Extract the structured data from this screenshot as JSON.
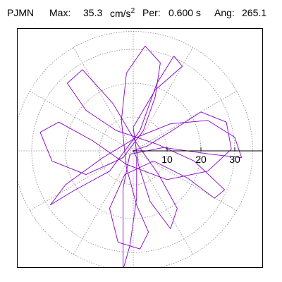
{
  "header": {
    "station": "PJMN",
    "max_label": "Max:",
    "max_value": "35.3",
    "max_unit_base": "cm/s",
    "max_unit_exp": "2",
    "per_label": "Per:",
    "per_value": "0.600 s",
    "ang_label": "Ang:",
    "ang_value": "265.1"
  },
  "chart_data": {
    "type": "scatter",
    "title": "",
    "xlabel": "",
    "ylabel": "",
    "r_ticks": [
      10,
      20,
      30
    ],
    "r_max": 35.3,
    "peak_angle_deg": 265.1,
    "grid": "polar dotted",
    "colors": {
      "trace": "#8800cc",
      "peak_marker": "#009977",
      "grid": "#888888"
    },
    "series": [
      {
        "values": [
          {
            "x": 0,
            "y": 0
          },
          {
            "x": 4.2,
            "y": 1.5
          },
          {
            "x": 11.5,
            "y": 6.0
          },
          {
            "x": 20.0,
            "y": 11.5
          },
          {
            "x": 27.5,
            "y": 8.5
          },
          {
            "x": 29.0,
            "y": 0.5
          },
          {
            "x": 22.0,
            "y": -6.0
          },
          {
            "x": 10.0,
            "y": -8.5
          },
          {
            "x": -2.0,
            "y": -4.0
          },
          {
            "x": -12.0,
            "y": 3.0
          },
          {
            "x": -22.0,
            "y": 8.5
          },
          {
            "x": -27.5,
            "y": 5.5
          },
          {
            "x": -24.0,
            "y": -3.0
          },
          {
            "x": -14.0,
            "y": -7.0
          },
          {
            "x": -3.0,
            "y": -2.0
          },
          {
            "x": 3.0,
            "y": 6.0
          },
          {
            "x": 6.5,
            "y": 16.0
          },
          {
            "x": 8.0,
            "y": 26.0
          },
          {
            "x": 3.5,
            "y": 31.0
          },
          {
            "x": -2.0,
            "y": 23.0
          },
          {
            "x": -3.5,
            "y": 9.0
          },
          {
            "x": -2.0,
            "y": -5.0
          },
          {
            "x": 1.0,
            "y": -16.0
          },
          {
            "x": 4.5,
            "y": -24.0
          },
          {
            "x": 2.0,
            "y": -29.0
          },
          {
            "x": -4.5,
            "y": -27.0
          },
          {
            "x": -7.0,
            "y": -17.0
          },
          {
            "x": -2.5,
            "y": -7.0
          },
          {
            "x": 6.0,
            "y": -3.0
          },
          {
            "x": 16.0,
            "y": -8.0
          },
          {
            "x": 24.0,
            "y": -14.0
          },
          {
            "x": 27.0,
            "y": -11.5
          },
          {
            "x": 18.0,
            "y": -3.0
          },
          {
            "x": 7.0,
            "y": 2.0
          },
          {
            "x": -5.0,
            "y": 6.0
          },
          {
            "x": -14.0,
            "y": 12.0
          },
          {
            "x": -19.5,
            "y": 20.0
          },
          {
            "x": -15.0,
            "y": 24.0
          },
          {
            "x": -6.0,
            "y": 14.0
          },
          {
            "x": 0.5,
            "y": 3.0
          },
          {
            "x": 7.5,
            "y": -7.0
          },
          {
            "x": 13.0,
            "y": -17.0
          },
          {
            "x": 11.0,
            "y": -23.0
          },
          {
            "x": 5.0,
            "y": -15.0
          },
          {
            "x": 1.5,
            "y": -4.0
          },
          {
            "x": 0.0,
            "y": 7.0
          },
          {
            "x": 6.5,
            "y": 18.0
          },
          {
            "x": 14.5,
            "y": 25.0
          },
          {
            "x": 12.0,
            "y": 28.0
          },
          {
            "x": 7.0,
            "y": 20.0
          },
          {
            "x": 2.0,
            "y": 6.0
          },
          {
            "x": -7.0,
            "y": -6.0
          },
          {
            "x": -18.0,
            "y": -12.0
          },
          {
            "x": -24.5,
            "y": -16.0
          },
          {
            "x": -20.0,
            "y": -10.0
          },
          {
            "x": -9.0,
            "y": -2.0
          },
          {
            "x": 1.0,
            "y": 4.0
          },
          {
            "x": 11.0,
            "y": 8.0
          },
          {
            "x": 22.0,
            "y": 9.0
          },
          {
            "x": 30.0,
            "y": 4.0
          },
          {
            "x": 32.0,
            "y": -2.0
          },
          {
            "x": 23.0,
            "y": -1.0
          },
          {
            "x": 9.0,
            "y": 1.0
          },
          {
            "x": -1.0,
            "y": -1.0
          },
          {
            "x": -3.0,
            "y": -11.0
          },
          {
            "x": -3.0,
            "y": -23.0
          },
          {
            "x": -3.0,
            "y": -35.1
          },
          {
            "x": -1.0,
            "y": -28.0
          },
          {
            "x": 1.0,
            "y": -14.0
          },
          {
            "x": 1.0,
            "y": -2.0
          },
          {
            "x": 0,
            "y": 0
          }
        ]
      }
    ]
  }
}
